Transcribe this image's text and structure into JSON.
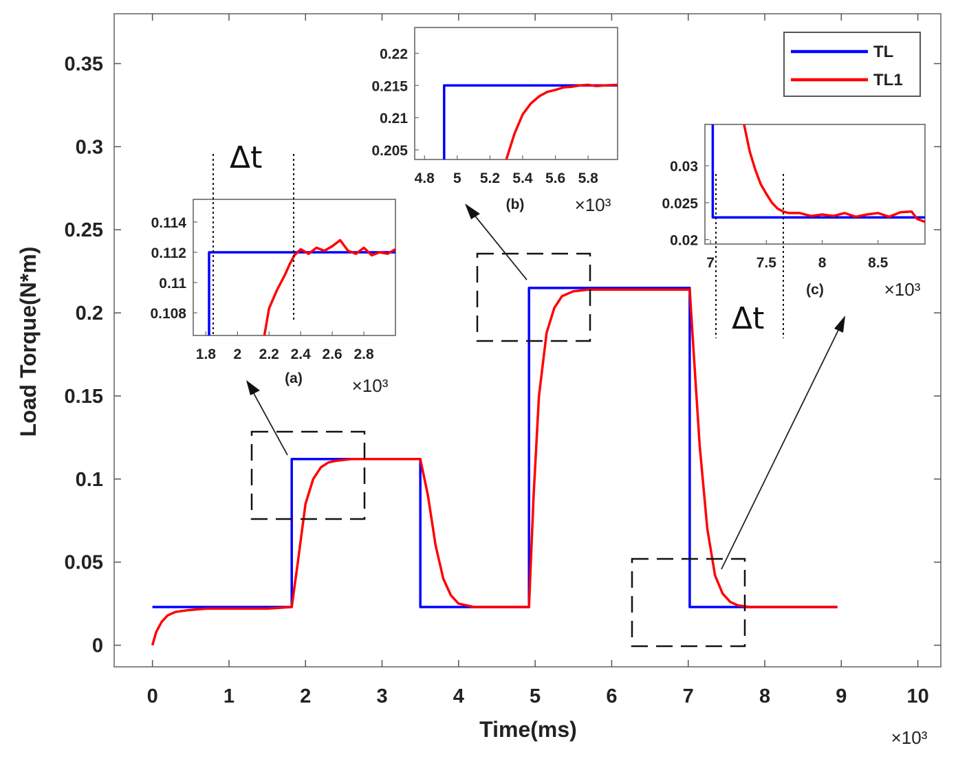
{
  "chart_data": [
    {
      "type": "line",
      "name": "main",
      "xlabel": "Time(ms)",
      "ylabel": "Load Torque(N*m)",
      "x_multiplier": "×10³",
      "xlim": [
        -0.5,
        10.3
      ],
      "ylim": [
        -0.013,
        0.38
      ],
      "xticks": [
        0,
        1,
        2,
        3,
        4,
        5,
        6,
        7,
        8,
        9,
        10
      ],
      "yticks": [
        0,
        0.05,
        0.1,
        0.15,
        0.2,
        0.25,
        0.3,
        0.35
      ],
      "xtick_labels": [
        "0",
        "1",
        "2",
        "3",
        "4",
        "5",
        "6",
        "7",
        "8",
        "9",
        "10"
      ],
      "ytick_labels": [
        "0",
        "0.05",
        "0.1",
        "0.15",
        "0.2",
        "0.25",
        "0.3",
        "0.35"
      ],
      "legend": {
        "position": "top-right",
        "entries": [
          {
            "label": "TL",
            "color": "#0000ff"
          },
          {
            "label": "TL1",
            "color": "#ff0000"
          }
        ]
      },
      "series": [
        {
          "name": "TL",
          "color": "#0000ff",
          "x": [
            0,
            1.82,
            1.82,
            3.5,
            3.5,
            4.92,
            4.92,
            7.02,
            7.02,
            8.95
          ],
          "y": [
            0.023,
            0.023,
            0.112,
            0.112,
            0.023,
            0.023,
            0.215,
            0.215,
            0.023,
            0.023
          ]
        },
        {
          "name": "TL1",
          "color": "#ff0000",
          "x": [
            0,
            0.05,
            0.12,
            0.2,
            0.3,
            0.45,
            0.7,
            1.0,
            1.5,
            1.82,
            1.9,
            2.0,
            2.1,
            2.2,
            2.3,
            2.4,
            2.6,
            2.8,
            3.0,
            3.3,
            3.5,
            3.6,
            3.7,
            3.8,
            3.9,
            4.0,
            4.2,
            4.5,
            4.92,
            4.98,
            5.05,
            5.15,
            5.25,
            5.35,
            5.5,
            5.7,
            5.9,
            6.2,
            6.6,
            7.02,
            7.08,
            7.15,
            7.25,
            7.35,
            7.45,
            7.55,
            7.65,
            7.8,
            8.1,
            8.5,
            8.95
          ],
          "y": [
            0.0,
            0.008,
            0.014,
            0.018,
            0.02,
            0.021,
            0.022,
            0.022,
            0.022,
            0.023,
            0.05,
            0.085,
            0.1,
            0.107,
            0.11,
            0.111,
            0.112,
            0.112,
            0.112,
            0.112,
            0.112,
            0.09,
            0.06,
            0.04,
            0.03,
            0.025,
            0.023,
            0.023,
            0.023,
            0.09,
            0.15,
            0.188,
            0.203,
            0.21,
            0.213,
            0.214,
            0.214,
            0.214,
            0.214,
            0.214,
            0.17,
            0.12,
            0.07,
            0.042,
            0.031,
            0.026,
            0.024,
            0.023,
            0.023,
            0.023,
            0.023
          ]
        }
      ]
    },
    {
      "type": "line",
      "name": "inset-a",
      "panel_label": "(a)",
      "x_multiplier": "×10³",
      "xlim": [
        1.72,
        3.0
      ],
      "ylim": [
        0.1065,
        0.1155
      ],
      "xticks": [
        1.8,
        2.0,
        2.2,
        2.4,
        2.6,
        2.8
      ],
      "xtick_labels": [
        "1.8",
        "2",
        "2.2",
        "2.4",
        "2.6",
        "2.8"
      ],
      "yticks": [
        0.108,
        0.11,
        0.112,
        0.114
      ],
      "ytick_labels": [
        "0.108",
        "0.11",
        "0.112",
        "0.114"
      ],
      "annotation": "Δt",
      "delta_t": [
        1.82,
        2.36
      ],
      "series": [
        {
          "name": "TL",
          "color": "#0000ff",
          "x": [
            1.82,
            1.82,
            3.0
          ],
          "y": [
            0.1065,
            0.112,
            0.112
          ]
        },
        {
          "name": "TL1",
          "color": "#ff0000",
          "x": [
            2.17,
            2.2,
            2.25,
            2.3,
            2.33,
            2.36,
            2.4,
            2.45,
            2.5,
            2.55,
            2.6,
            2.65,
            2.7,
            2.75,
            2.8,
            2.85,
            2.9,
            2.95,
            3.0
          ],
          "y": [
            0.1065,
            0.1083,
            0.1095,
            0.1105,
            0.1112,
            0.1118,
            0.1122,
            0.1119,
            0.1123,
            0.1121,
            0.1124,
            0.1128,
            0.1121,
            0.1119,
            0.1123,
            0.1118,
            0.112,
            0.1119,
            0.1122
          ]
        }
      ]
    },
    {
      "type": "line",
      "name": "inset-b",
      "panel_label": "(b)",
      "x_multiplier": "×10³",
      "xlim": [
        4.74,
        5.98
      ],
      "ylim": [
        0.2035,
        0.224
      ],
      "xticks": [
        4.8,
        5.0,
        5.2,
        5.4,
        5.6,
        5.8
      ],
      "xtick_labels": [
        "4.8",
        "5",
        "5.2",
        "5.4",
        "5.6",
        "5.8"
      ],
      "yticks": [
        0.205,
        0.21,
        0.215,
        0.22
      ],
      "ytick_labels": [
        "0.205",
        "0.21",
        "0.215",
        "0.22"
      ],
      "series": [
        {
          "name": "TL",
          "color": "#0000ff",
          "x": [
            4.92,
            4.92,
            5.98
          ],
          "y": [
            0.2035,
            0.215,
            0.215
          ]
        },
        {
          "name": "TL1",
          "color": "#ff0000",
          "x": [
            5.3,
            5.35,
            5.4,
            5.45,
            5.5,
            5.55,
            5.6,
            5.65,
            5.7,
            5.75,
            5.8,
            5.85,
            5.9,
            5.98
          ],
          "y": [
            0.2035,
            0.2075,
            0.2105,
            0.2122,
            0.2133,
            0.214,
            0.2143,
            0.2147,
            0.2148,
            0.215,
            0.2151,
            0.2149,
            0.215,
            0.2151
          ]
        }
      ]
    },
    {
      "type": "line",
      "name": "inset-c",
      "panel_label": "(c)",
      "x_multiplier": "×10³",
      "xlim": [
        6.95,
        8.92
      ],
      "ylim": [
        0.0194,
        0.0356
      ],
      "xticks": [
        7.0,
        7.5,
        8.0,
        8.5
      ],
      "xtick_labels": [
        "7",
        "7.5",
        "8",
        "8.5"
      ],
      "yticks": [
        0.02,
        0.025,
        0.03
      ],
      "ytick_labels": [
        "0.02",
        "0.025",
        "0.03"
      ],
      "annotation": "Δt",
      "delta_t": [
        7.02,
        7.62
      ],
      "series": [
        {
          "name": "TL",
          "color": "#0000ff",
          "x": [
            7.02,
            7.02,
            8.92
          ],
          "y": [
            0.0356,
            0.023,
            0.023
          ]
        },
        {
          "name": "TL1",
          "color": "#ff0000",
          "x": [
            7.3,
            7.35,
            7.4,
            7.45,
            7.5,
            7.55,
            7.6,
            7.65,
            7.7,
            7.8,
            7.9,
            8.0,
            8.1,
            8.2,
            8.3,
            8.4,
            8.5,
            8.6,
            8.7,
            8.8,
            8.85,
            8.92
          ],
          "y": [
            0.0356,
            0.032,
            0.0295,
            0.0275,
            0.0262,
            0.025,
            0.0242,
            0.0238,
            0.0236,
            0.0236,
            0.0232,
            0.0234,
            0.0232,
            0.0236,
            0.0231,
            0.0234,
            0.0236,
            0.0231,
            0.0237,
            0.0238,
            0.0228,
            0.0224
          ]
        }
      ]
    }
  ]
}
